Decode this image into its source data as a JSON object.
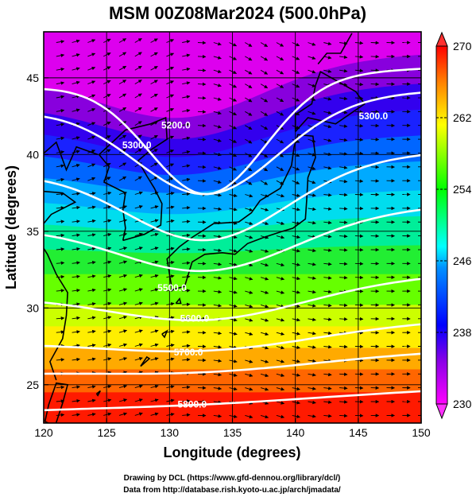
{
  "title": "MSM 00Z08Mar2024 (500.0hPa)",
  "xlabel": "Longitude (degrees)",
  "ylabel": "Latitude  (degrees)",
  "x_ticks": [
    120,
    125,
    130,
    135,
    140,
    145,
    150
  ],
  "y_ticks": [
    25,
    30,
    35,
    40,
    45
  ],
  "colorbar": {
    "min": 230,
    "max": 270,
    "labels": [
      270,
      262,
      254,
      246,
      238,
      230
    ]
  },
  "contour_labels": [
    {
      "text": "5200.0",
      "lon": 130.5,
      "lat": 41.7
    },
    {
      "text": "5300.0",
      "lon": 127.4,
      "lat": 40.4
    },
    {
      "text": "5300.0",
      "lon": 146.2,
      "lat": 42.3
    },
    {
      "text": "5500.0",
      "lon": 130.2,
      "lat": 31.1
    },
    {
      "text": "5600.0",
      "lon": 132.0,
      "lat": 29.1
    },
    {
      "text": "5700.0",
      "lon": 131.5,
      "lat": 26.9
    },
    {
      "text": "5800.0",
      "lon": 131.8,
      "lat": 23.5
    }
  ],
  "credits": [
    "Drawing by DCL (https://www.gfd-dennou.org/library/dcl/)",
    "Data from http://database.rish.kyoto-u.ac.jp/arch/jmadata/"
  ],
  "colors": {
    "colormap": [
      "#ff00ff",
      "#0000ff",
      "#00ffff",
      "#00ff00",
      "#ffff00",
      "#ff0000"
    ],
    "contour": "#ffffff",
    "vectors": "#000000"
  }
}
